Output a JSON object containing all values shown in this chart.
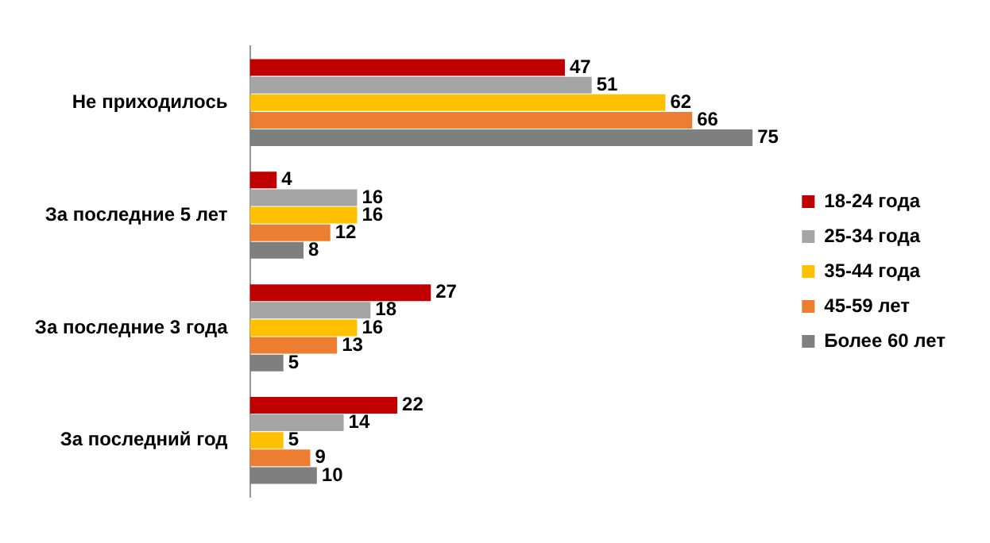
{
  "chart_data": {
    "type": "bar",
    "orientation": "horizontal",
    "categories": [
      "Не приходилось",
      "За последние 5 лет",
      "За последние 3 года",
      "За последний год"
    ],
    "series": [
      {
        "name": "18-24 года",
        "color": "#c00000",
        "values": [
          47,
          4,
          27,
          22
        ]
      },
      {
        "name": "25-34 года",
        "color": "#a5a5a5",
        "values": [
          51,
          16,
          18,
          14
        ]
      },
      {
        "name": "35-44 года",
        "color": "#ffc000",
        "values": [
          62,
          16,
          16,
          5
        ]
      },
      {
        "name": "45-59 лет",
        "color": "#ed7d31",
        "values": [
          66,
          12,
          13,
          9
        ]
      },
      {
        "name": "Более 60 лет",
        "color": "#7f7f7f",
        "values": [
          75,
          8,
          5,
          10
        ]
      }
    ],
    "data_labels": true,
    "legend": "right",
    "grid": false
  }
}
